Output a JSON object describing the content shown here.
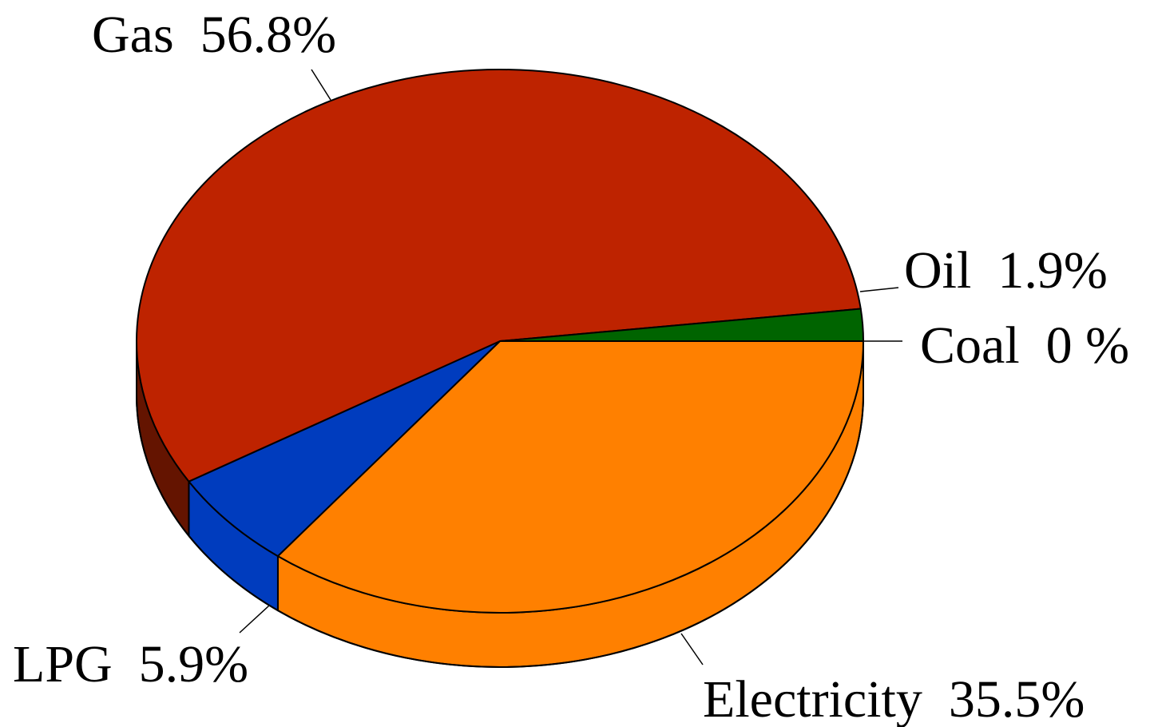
{
  "chart_data": {
    "type": "pie",
    "three_d": true,
    "slices": [
      {
        "name": "Electricity",
        "value": 35.5,
        "label": "Electricity  35.5%",
        "color": "#FF8000",
        "side_color": "#FF8000"
      },
      {
        "name": "LPG",
        "value": 5.9,
        "label": "LPG  5.9%",
        "color": "#003CBE",
        "side_color": "#003CBE"
      },
      {
        "name": "Gas",
        "value": 56.8,
        "label": "Gas  56.8%",
        "color": "#BE2300",
        "side_color": "#641400"
      },
      {
        "name": "Oil",
        "value": 1.9,
        "label": "Oil  1.9%",
        "color": "#006400",
        "side_color": "#004B00"
      },
      {
        "name": "Coal",
        "value": 0,
        "label": "Coal  0 %",
        "color": "#505050",
        "side_color": "#3C3C3C"
      }
    ],
    "legend": "none",
    "labels": "outside with leader lines"
  }
}
